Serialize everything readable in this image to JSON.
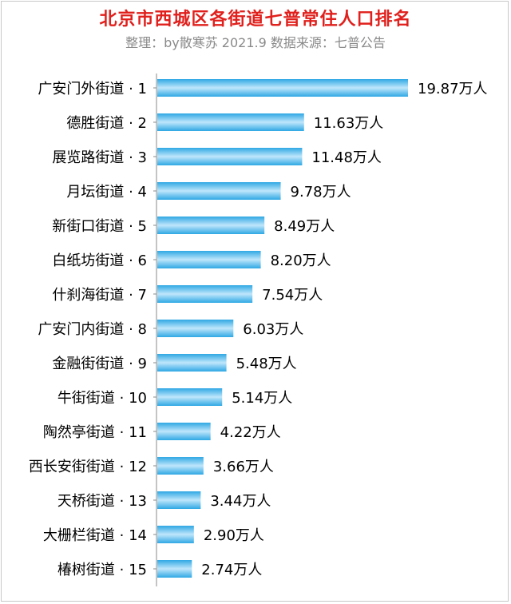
{
  "chart_data": {
    "type": "bar",
    "orientation": "horizontal",
    "title": "北京市西城区各街道七普常住人口排名",
    "subtitle": "整理：by散寒苏 2021.9 数据来源：七普公告",
    "categories": [
      "广安门外街道 · 1",
      "德胜街道 · 2",
      "展览路街道 · 3",
      "月坛街道 · 4",
      "新街口街道 · 5",
      "白纸坊街道 · 6",
      "什刹海街道 · 7",
      "广安门内街道 · 8",
      "金融街街道 · 9",
      "牛街街道 · 10",
      "陶然亭街道 · 11",
      "西长安街街道 · 12",
      "天桥街道 · 13",
      "大栅栏街道 · 14",
      "椿树街道 · 15"
    ],
    "values": [
      19.87,
      11.63,
      11.48,
      9.78,
      8.49,
      8.2,
      7.54,
      6.03,
      5.48,
      5.14,
      4.22,
      3.66,
      3.44,
      2.9,
      2.74
    ],
    "data_labels": [
      "19.87万人",
      "11.63万人",
      "11.48万人",
      "9.78万人",
      "8.49万人",
      "8.20万人",
      "7.54万人",
      "6.03万人",
      "5.48万人",
      "5.14万人",
      "4.22万人",
      "3.66万人",
      "3.44万人",
      "2.90万人",
      "2.74万人"
    ],
    "unit": "万人",
    "xlim": [
      0,
      19.87
    ],
    "grid": false,
    "legend": "none",
    "colors": {
      "bar_edge": "#2fa8e4",
      "bar_mid": "#bfe6fb",
      "title": "#e0201c",
      "subtitle": "#8a8a8a",
      "label": "#000000",
      "axis": "#8a8a8a"
    }
  }
}
